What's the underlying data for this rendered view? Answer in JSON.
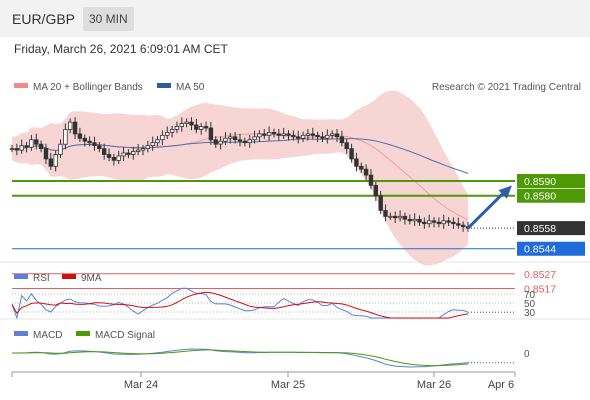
{
  "header": {
    "symbol": "EUR/GBP",
    "timeframe": "30 MIN",
    "datetime": "Friday, March 26, 2021 6:09:01 AM CET"
  },
  "legend": {
    "ma20_bb": "MA 20 + Bollinger Bands",
    "ma50": "MA 50",
    "credit": "Research © 2021 Trading Central",
    "rsi": "RSI",
    "rsi_ma": "9MA",
    "macd": "MACD",
    "macd_signal": "MACD Signal"
  },
  "colors": {
    "green": "#4e9a06",
    "blue": "#1f6bdc",
    "dark": "#333333",
    "red": "#e06060",
    "ma50": "#4a72a8",
    "band": "#f6c7c7"
  },
  "chart_data": {
    "type": "candlestick",
    "x_ticks": [
      "Mar 24",
      "Mar 25",
      "Mar 26",
      "Apr 6"
    ],
    "ylim": [
      0.8535,
      0.8645
    ],
    "close": [
      0.8612,
      0.8611,
      0.8614,
      0.8613,
      0.8618,
      0.8615,
      0.8612,
      0.8605,
      0.86,
      0.8608,
      0.8615,
      0.8625,
      0.863,
      0.8622,
      0.8619,
      0.8617,
      0.8616,
      0.8614,
      0.8612,
      0.8608,
      0.8606,
      0.8604,
      0.8607,
      0.8609,
      0.8608,
      0.861,
      0.8611,
      0.8612,
      0.8614,
      0.8616,
      0.8618,
      0.8621,
      0.8623,
      0.8625,
      0.8627,
      0.8629,
      0.863,
      0.8628,
      0.8625,
      0.8627,
      0.8626,
      0.8618,
      0.8615,
      0.8617,
      0.8619,
      0.862,
      0.8618,
      0.8617,
      0.8616,
      0.8618,
      0.862,
      0.8622,
      0.8621,
      0.8623,
      0.8622,
      0.8621,
      0.8622,
      0.8621,
      0.862,
      0.8619,
      0.8621,
      0.8622,
      0.8621,
      0.862,
      0.8619,
      0.8621,
      0.8622,
      0.862,
      0.8616,
      0.8612,
      0.8605,
      0.86,
      0.8598,
      0.8594,
      0.8587,
      0.858,
      0.857,
      0.8566,
      0.8566,
      0.8565,
      0.8566,
      0.8564,
      0.8563,
      0.8564,
      0.8562,
      0.8561,
      0.8563,
      0.8562,
      0.8561,
      0.8563,
      0.8562,
      0.8561,
      0.856,
      0.8559,
      0.8558
    ],
    "levels": [
      {
        "value": "0.8590",
        "color": "green"
      },
      {
        "value": "0.8580",
        "color": "green"
      },
      {
        "value": "0.8558",
        "color": "dark"
      },
      {
        "value": "0.8544",
        "color": "blue"
      },
      {
        "value": "0.8527",
        "color": "red"
      },
      {
        "value": "0.8517",
        "color": "red"
      }
    ],
    "rsi_levels": [
      "70",
      "50",
      "30"
    ],
    "macd_zero": "0"
  }
}
